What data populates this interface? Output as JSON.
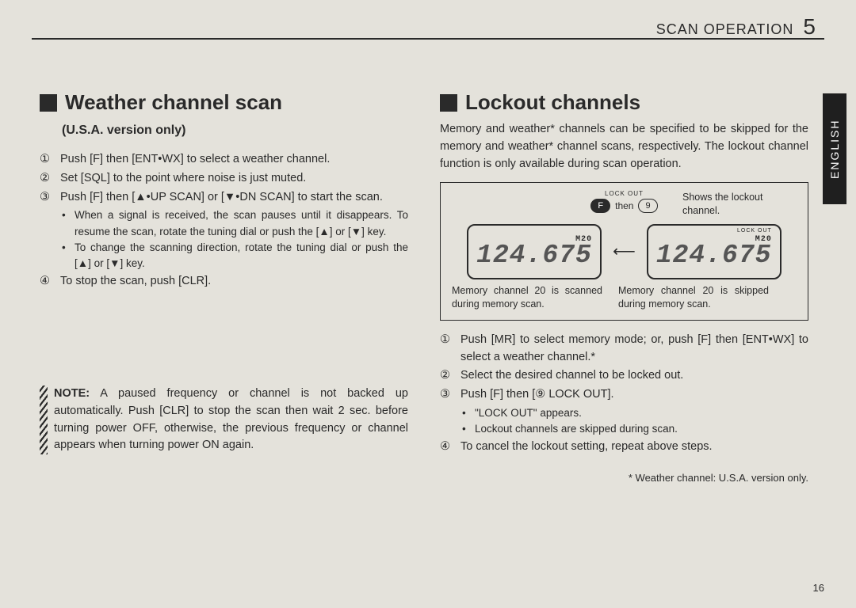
{
  "header": {
    "section": "SCAN OPERATION",
    "chapter": "5"
  },
  "sidetab": "ENGLISH",
  "page_number": "16",
  "left": {
    "title": "Weather channel scan",
    "subtitle": "(U.S.A. version only)",
    "steps": [
      {
        "n": "①",
        "text": "Push [F] then [ENT•WX] to select a weather channel."
      },
      {
        "n": "②",
        "text": "Set [SQL] to the point where noise is just muted."
      },
      {
        "n": "③",
        "text": "Push [F] then [▲•UP SCAN] or [▼•DN SCAN] to start the scan."
      }
    ],
    "bullets3": [
      "When a signal is received, the scan pauses until it disappears. To resume the scan, rotate the tuning dial or push the [▲] or [▼] key.",
      "To change the scanning direction, rotate the tuning dial or push the [▲] or [▼] key."
    ],
    "step4": {
      "n": "④",
      "text": "To stop the scan, push [CLR]."
    },
    "note_label": "NOTE:",
    "note": "A paused frequency or channel is not backed up automatically. Push [CLR] to stop the scan then wait 2 sec. before turning power OFF, otherwise, the previous frequency or channel appears when turning power ON again."
  },
  "right": {
    "title": "Lockout channels",
    "intro": "Memory and weather* channels can be specified to be skipped for the memory and weather* channel scans, respectively. The lockout channel function is only available during scan operation.",
    "diagram": {
      "top_lockout": "LOCK OUT",
      "btn_f": "F",
      "then": "then",
      "btn_9": "9",
      "caption_top": "Shows the lockout channel.",
      "lcd_lockout": "LOCK OUT",
      "lcd_mch_label": "M",
      "lcd_mch_num": "20",
      "lcd_freq": "124.675",
      "caption_left": "Memory channel 20 is scanned during memory scan.",
      "caption_right": "Memory channel 20 is skipped during memory scan."
    },
    "steps": [
      {
        "n": "①",
        "text": "Push [MR] to select memory mode; or, push [F] then [ENT•WX] to select a weather channel.*"
      },
      {
        "n": "②",
        "text": "Select the desired channel to be locked out."
      },
      {
        "n": "③",
        "text": "Push [F] then [⑨ LOCK OUT]."
      }
    ],
    "bullets3": [
      "\"LOCK OUT\" appears.",
      "Lockout channels are skipped during scan."
    ],
    "step4": {
      "n": "④",
      "text": "To cancel the lockout setting, repeat above steps."
    },
    "footnote": "* Weather channel: U.S.A. version only."
  }
}
